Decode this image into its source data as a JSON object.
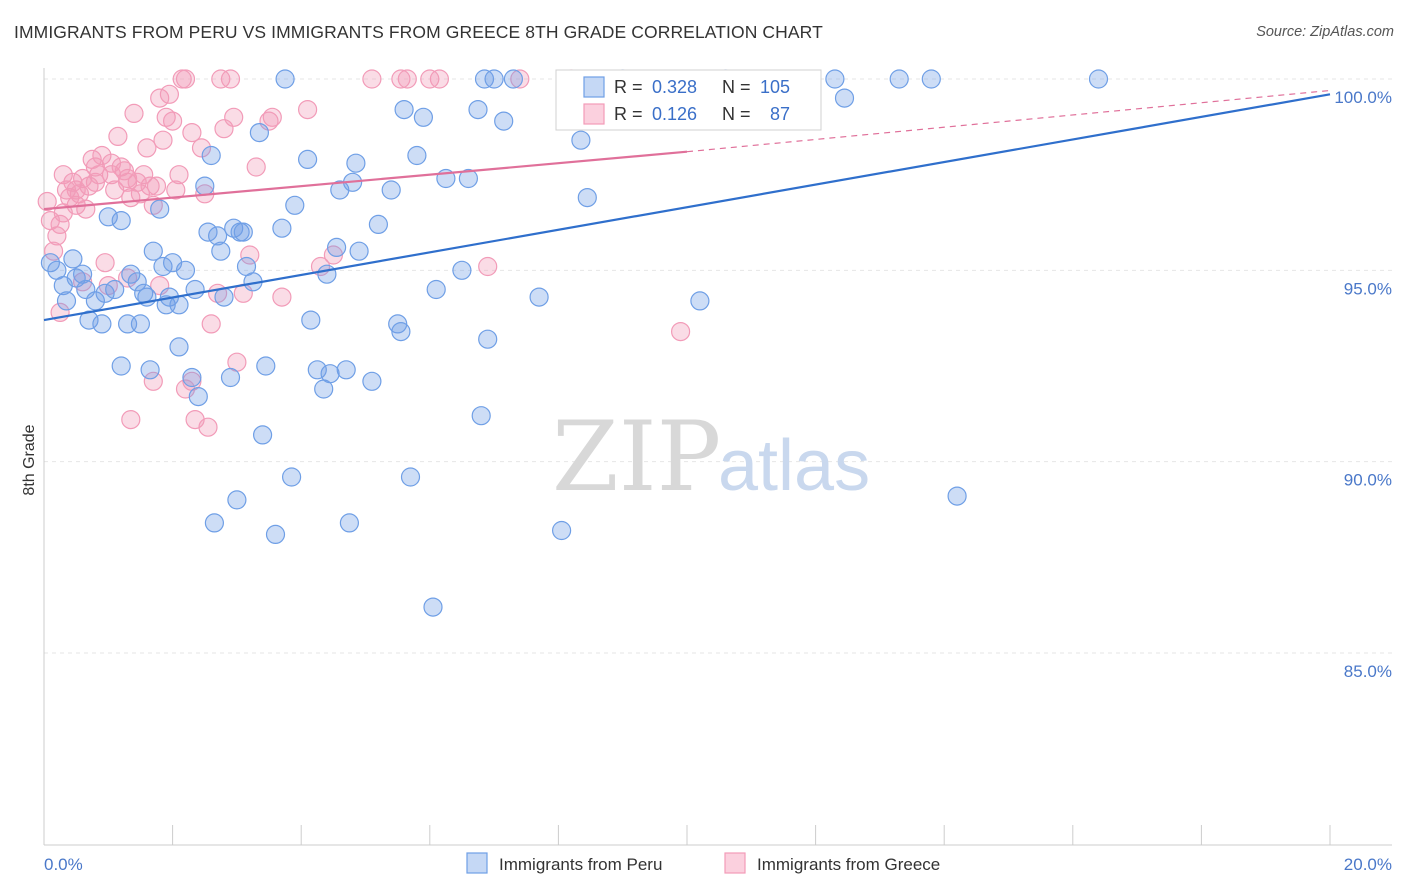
{
  "title": "IMMIGRANTS FROM PERU VS IMMIGRANTS FROM GREECE 8TH GRADE CORRELATION CHART",
  "source": "Source: ZipAtlas.com",
  "watermark": {
    "zip": "ZIP",
    "atlas": "atlas"
  },
  "colors": {
    "peru": "#6f9fe6",
    "peru_line": "#2f6fcc",
    "greece": "#f29bb8",
    "greece_line": "#e0709a",
    "axis_text": "#4a78c9"
  },
  "legend": {
    "peru": {
      "r_label": "R =",
      "r_value": "0.328",
      "n_label": "N =",
      "n_value": "105"
    },
    "greece": {
      "r_label": "R =",
      "r_value": "0.126",
      "n_label": "N =",
      "n_value": "87"
    }
  },
  "chart_data": {
    "type": "scatter",
    "xlabel": "",
    "ylabel": "8th Grade",
    "xlim": [
      0,
      20
    ],
    "ylim": [
      80.5,
      100.5
    ],
    "x_tick_labels": [
      {
        "x": 0,
        "label": "0.0%"
      },
      {
        "x": 20,
        "label": "20.0%"
      }
    ],
    "y_tick_labels": [
      {
        "y": 100,
        "label": "100.0%"
      },
      {
        "y": 95,
        "label": "95.0%"
      },
      {
        "y": 90,
        "label": "90.0%"
      },
      {
        "y": 85,
        "label": "85.0%"
      }
    ],
    "grid": true,
    "legend_position": "top-center",
    "series": [
      {
        "name": "Immigrants from Peru",
        "trend": {
          "x": [
            0,
            20
          ],
          "y": [
            93.7,
            99.6
          ]
        },
        "points": [
          [
            0.1,
            95.2
          ],
          [
            0.2,
            95.0
          ],
          [
            0.3,
            94.6
          ],
          [
            0.35,
            94.2
          ],
          [
            0.45,
            95.3
          ],
          [
            0.5,
            94.8
          ],
          [
            0.6,
            94.9
          ],
          [
            0.65,
            94.5
          ],
          [
            0.7,
            93.7
          ],
          [
            0.8,
            94.2
          ],
          [
            0.9,
            93.6
          ],
          [
            0.95,
            94.4
          ],
          [
            1.1,
            94.5
          ],
          [
            1.0,
            96.4
          ],
          [
            1.2,
            96.3
          ],
          [
            1.2,
            92.5
          ],
          [
            1.3,
            93.6
          ],
          [
            1.35,
            94.9
          ],
          [
            1.45,
            94.7
          ],
          [
            1.5,
            93.6
          ],
          [
            1.55,
            94.4
          ],
          [
            1.6,
            94.3
          ],
          [
            1.65,
            92.4
          ],
          [
            1.7,
            95.5
          ],
          [
            1.8,
            96.6
          ],
          [
            1.85,
            95.1
          ],
          [
            1.9,
            94.1
          ],
          [
            1.95,
            94.3
          ],
          [
            2.0,
            95.2
          ],
          [
            2.1,
            94.1
          ],
          [
            2.1,
            93.0
          ],
          [
            2.2,
            95.0
          ],
          [
            2.3,
            92.2
          ],
          [
            2.35,
            94.5
          ],
          [
            2.4,
            91.7
          ],
          [
            2.5,
            97.2
          ],
          [
            2.55,
            96.0
          ],
          [
            2.6,
            98.0
          ],
          [
            2.65,
            88.4
          ],
          [
            2.75,
            95.5
          ],
          [
            2.8,
            94.3
          ],
          [
            2.9,
            92.2
          ],
          [
            2.95,
            96.1
          ],
          [
            3.0,
            89.0
          ],
          [
            3.05,
            96.0
          ],
          [
            3.1,
            96.0
          ],
          [
            3.15,
            95.1
          ],
          [
            3.25,
            94.7
          ],
          [
            3.35,
            98.6
          ],
          [
            3.4,
            90.7
          ],
          [
            3.45,
            92.5
          ],
          [
            3.6,
            88.1
          ],
          [
            3.7,
            96.1
          ],
          [
            3.75,
            100.0
          ],
          [
            3.85,
            89.6
          ],
          [
            3.9,
            96.7
          ],
          [
            4.1,
            97.9
          ],
          [
            4.15,
            93.7
          ],
          [
            4.25,
            92.4
          ],
          [
            4.35,
            91.9
          ],
          [
            4.4,
            94.9
          ],
          [
            4.45,
            92.3
          ],
          [
            4.55,
            95.6
          ],
          [
            4.6,
            97.1
          ],
          [
            4.7,
            92.4
          ],
          [
            4.75,
            88.4
          ],
          [
            4.8,
            97.3
          ],
          [
            4.85,
            97.8
          ],
          [
            4.9,
            95.5
          ],
          [
            5.1,
            92.1
          ],
          [
            5.2,
            96.2
          ],
          [
            5.4,
            97.1
          ],
          [
            5.5,
            93.6
          ],
          [
            5.55,
            93.4
          ],
          [
            5.6,
            99.2
          ],
          [
            5.7,
            89.6
          ],
          [
            5.8,
            98.0
          ],
          [
            5.9,
            99.0
          ],
          [
            6.05,
            86.2
          ],
          [
            6.1,
            94.5
          ],
          [
            6.25,
            97.4
          ],
          [
            6.5,
            95.0
          ],
          [
            6.6,
            97.4
          ],
          [
            6.75,
            99.2
          ],
          [
            6.8,
            91.2
          ],
          [
            6.85,
            100.0
          ],
          [
            6.9,
            93.2
          ],
          [
            7.0,
            100.0
          ],
          [
            7.15,
            98.9
          ],
          [
            7.3,
            100.0
          ],
          [
            7.7,
            94.3
          ],
          [
            8.05,
            88.2
          ],
          [
            8.35,
            98.4
          ],
          [
            8.45,
            96.9
          ],
          [
            9.0,
            100.0
          ],
          [
            10.2,
            94.2
          ],
          [
            10.6,
            100.0
          ],
          [
            12.3,
            100.0
          ],
          [
            12.45,
            99.5
          ],
          [
            13.3,
            100.0
          ],
          [
            13.8,
            100.0
          ],
          [
            14.2,
            89.1
          ],
          [
            16.4,
            100.0
          ],
          [
            8.95,
            99.8
          ],
          [
            2.7,
            95.9
          ]
        ]
      },
      {
        "name": "Immigrants from Greece",
        "trend": {
          "x": [
            0,
            10
          ],
          "y": [
            96.6,
            98.1
          ]
        },
        "trend_extension": {
          "x": [
            10,
            20
          ],
          "y": [
            98.1,
            99.7
          ]
        },
        "points": [
          [
            0.05,
            96.8
          ],
          [
            0.1,
            96.3
          ],
          [
            0.15,
            95.5
          ],
          [
            0.2,
            95.9
          ],
          [
            0.25,
            96.2
          ],
          [
            0.3,
            97.5
          ],
          [
            0.35,
            97.1
          ],
          [
            0.4,
            96.9
          ],
          [
            0.45,
            97.3
          ],
          [
            0.5,
            96.7
          ],
          [
            0.55,
            97.0
          ],
          [
            0.6,
            97.4
          ],
          [
            0.65,
            96.6
          ],
          [
            0.7,
            97.2
          ],
          [
            0.75,
            97.9
          ],
          [
            0.8,
            97.7
          ],
          [
            0.85,
            97.5
          ],
          [
            0.9,
            98.0
          ],
          [
            0.95,
            95.2
          ],
          [
            1.0,
            94.6
          ],
          [
            1.05,
            97.5
          ],
          [
            1.1,
            97.1
          ],
          [
            1.15,
            98.5
          ],
          [
            1.2,
            97.7
          ],
          [
            1.25,
            97.6
          ],
          [
            1.3,
            97.3
          ],
          [
            1.35,
            96.9
          ],
          [
            1.4,
            99.1
          ],
          [
            1.45,
            97.3
          ],
          [
            1.5,
            97.0
          ],
          [
            1.55,
            97.5
          ],
          [
            1.6,
            98.2
          ],
          [
            1.65,
            97.2
          ],
          [
            1.7,
            96.7
          ],
          [
            1.75,
            97.2
          ],
          [
            1.8,
            94.6
          ],
          [
            1.85,
            98.4
          ],
          [
            1.9,
            99.0
          ],
          [
            1.95,
            99.6
          ],
          [
            2.0,
            98.9
          ],
          [
            2.05,
            97.1
          ],
          [
            2.1,
            97.5
          ],
          [
            2.15,
            100.0
          ],
          [
            2.2,
            91.9
          ],
          [
            2.3,
            92.1
          ],
          [
            2.35,
            91.1
          ],
          [
            2.45,
            98.2
          ],
          [
            2.5,
            97.0
          ],
          [
            2.55,
            90.9
          ],
          [
            2.6,
            93.6
          ],
          [
            2.7,
            94.4
          ],
          [
            2.75,
            100.0
          ],
          [
            2.8,
            98.7
          ],
          [
            2.9,
            100.0
          ],
          [
            2.95,
            99.0
          ],
          [
            3.0,
            92.6
          ],
          [
            3.1,
            94.4
          ],
          [
            3.2,
            95.4
          ],
          [
            3.3,
            97.7
          ],
          [
            3.5,
            98.9
          ],
          [
            3.7,
            94.3
          ],
          [
            4.1,
            99.2
          ],
          [
            4.5,
            95.4
          ],
          [
            5.1,
            100.0
          ],
          [
            5.55,
            100.0
          ],
          [
            5.65,
            100.0
          ],
          [
            6.0,
            100.0
          ],
          [
            6.15,
            100.0
          ],
          [
            6.9,
            95.1
          ],
          [
            7.4,
            100.0
          ],
          [
            8.2,
            100.0
          ],
          [
            9.9,
            93.4
          ],
          [
            0.25,
            93.9
          ],
          [
            0.6,
            94.7
          ],
          [
            1.3,
            94.8
          ],
          [
            1.35,
            91.1
          ],
          [
            1.7,
            92.1
          ],
          [
            1.3,
            97.4
          ],
          [
            0.5,
            97.1
          ],
          [
            0.3,
            96.5
          ],
          [
            1.05,
            97.8
          ],
          [
            0.8,
            97.3
          ],
          [
            2.3,
            98.6
          ],
          [
            3.55,
            99.0
          ],
          [
            4.3,
            95.1
          ],
          [
            1.8,
            99.5
          ],
          [
            2.2,
            100.0
          ]
        ]
      }
    ]
  }
}
